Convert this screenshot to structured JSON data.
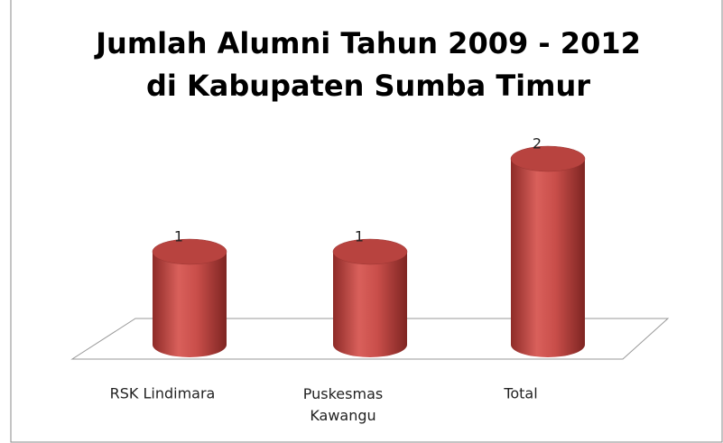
{
  "chart_data": {
    "type": "bar",
    "title": [
      "Jumlah Alumni Tahun 2009 - 2012",
      "di Kabupaten Sumba Timur"
    ],
    "categories": [
      "RSK Lindimara",
      "Puskesmas Kawangu",
      "Total"
    ],
    "values": [
      1,
      1,
      2
    ],
    "color": "#c0504d"
  }
}
